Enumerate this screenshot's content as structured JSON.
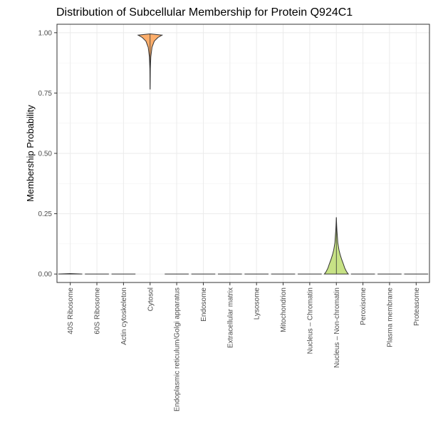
{
  "chart_data": {
    "type": "violin",
    "title": "Distribution of Subcellular Membership for Protein Q924C1",
    "xlabel": "",
    "ylabel": "Membership Probability",
    "ylim": [
      -0.035,
      1.035
    ],
    "yticks": [
      "0.00",
      "0.25",
      "0.50",
      "0.75",
      "1.00"
    ],
    "ytick_values": [
      0,
      0.25,
      0.5,
      0.75,
      1.0
    ],
    "grid": true,
    "legend": "none",
    "categories": [
      "40S Ribosome",
      "60S Ribosome",
      "Actin cytoskeleton",
      "Cytosol",
      "Endoplasmic reticulum/Golgi apparatus",
      "Endosome",
      "Extracellular matrix",
      "Lysosome",
      "Mitochondrion",
      "Nucleus – Chromatin",
      "Nucleus – Non-chromatin",
      "Peroxisome",
      "Plasma membrane",
      "Proteasome"
    ],
    "series": [
      {
        "category": "40S Ribosome",
        "min": 0.0,
        "max": 0.002,
        "color": "#b7b7b7",
        "profile": [
          [
            0.0,
            1.0
          ],
          [
            0.001,
            0.6
          ],
          [
            0.002,
            0.0
          ]
        ]
      },
      {
        "category": "60S Ribosome",
        "min": 0.0,
        "max": 0.0,
        "color": "#b7b7b7",
        "profile": []
      },
      {
        "category": "Actin cytoskeleton",
        "min": 0.0,
        "max": 0.0,
        "color": "#b7b7b7",
        "profile": []
      },
      {
        "category": "Cytosol",
        "min": 0.765,
        "max": 0.995,
        "color": "#fdae6b",
        "profile": [
          [
            0.765,
            0.0
          ],
          [
            0.85,
            0.02
          ],
          [
            0.9,
            0.06
          ],
          [
            0.94,
            0.16
          ],
          [
            0.965,
            0.35
          ],
          [
            0.98,
            0.65
          ],
          [
            0.99,
            1.0
          ],
          [
            0.995,
            0.0
          ]
        ]
      },
      {
        "category": "Endoplasmic reticulum/Golgi apparatus",
        "min": 0.0,
        "max": 0.0,
        "color": "#b7b7b7",
        "profile": []
      },
      {
        "category": "Endosome",
        "min": 0.0,
        "max": 0.0,
        "color": "#b7b7b7",
        "profile": []
      },
      {
        "category": "Extracellular matrix",
        "min": 0.0,
        "max": 0.0,
        "color": "#b7b7b7",
        "profile": []
      },
      {
        "category": "Lysosome",
        "min": 0.0,
        "max": 0.0,
        "color": "#b7b7b7",
        "profile": []
      },
      {
        "category": "Mitochondrion",
        "min": 0.0,
        "max": 0.0,
        "color": "#b7b7b7",
        "profile": []
      },
      {
        "category": "Nucleus – Chromatin",
        "min": 0.0,
        "max": 0.0,
        "color": "#b7b7b7",
        "profile": []
      },
      {
        "category": "Nucleus – Non-chromatin",
        "min": 0.0,
        "max": 0.235,
        "color": "#c7e285",
        "profile": [
          [
            0.0,
            1.0
          ],
          [
            0.01,
            0.85
          ],
          [
            0.025,
            0.7
          ],
          [
            0.04,
            0.6
          ],
          [
            0.06,
            0.45
          ],
          [
            0.08,
            0.32
          ],
          [
            0.1,
            0.22
          ],
          [
            0.13,
            0.12
          ],
          [
            0.16,
            0.08
          ],
          [
            0.18,
            0.05
          ],
          [
            0.2,
            0.03
          ],
          [
            0.235,
            0.0
          ]
        ]
      },
      {
        "category": "Peroxisome",
        "min": 0.0,
        "max": 0.0,
        "color": "#b7b7b7",
        "profile": []
      },
      {
        "category": "Plasma membrane",
        "min": 0.0,
        "max": 0.0,
        "color": "#b7b7b7",
        "profile": []
      },
      {
        "category": "Proteasome",
        "min": 0.0,
        "max": 0.0,
        "color": "#b7b7b7",
        "profile": []
      }
    ]
  }
}
